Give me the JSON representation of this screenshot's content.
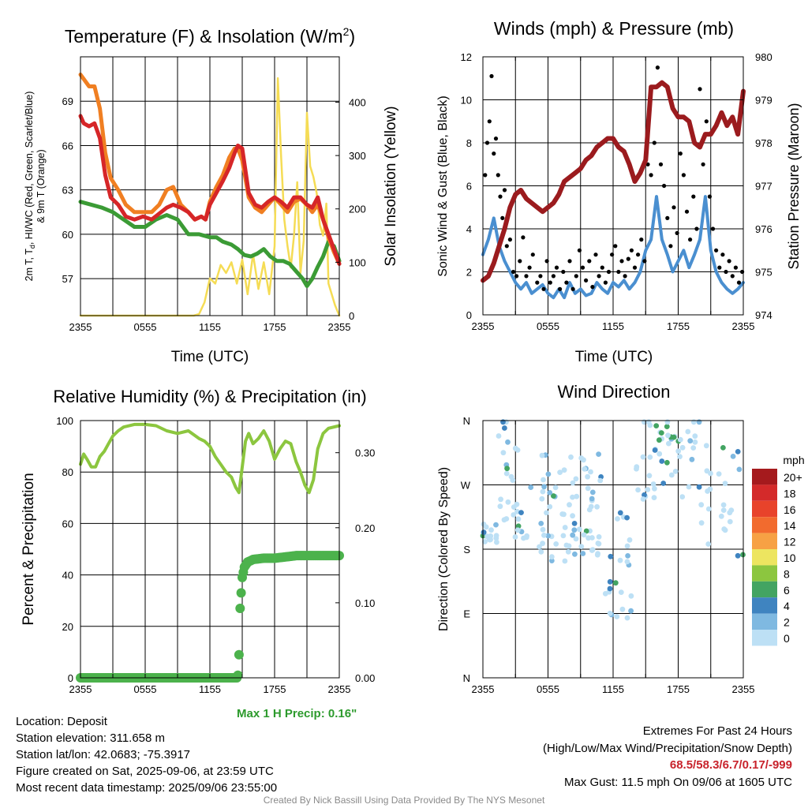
{
  "chart_data": [
    {
      "type": "line",
      "title": "Temperature (F) & Insolation (W/m2)",
      "title_main": "Temperature (F) & Insolation (W/m",
      "title_sup": "2",
      "title_end": ")",
      "ylabel_left": [
        "2m T, T",
        "d",
        ", HI/WC (Red, Green, Scarlet/Blue)",
        "& 9m T (Orange)"
      ],
      "ylabel_right": "Solar Insolation (Yellow)",
      "xlabel": "Time (UTC)",
      "x_ticks": [
        "2355",
        "0555",
        "1155",
        "1755",
        "2355"
      ],
      "y_left_ticks": [
        57,
        60,
        63,
        66,
        69
      ],
      "y_left_range": [
        54.5,
        72
      ],
      "y_right_ticks": [
        0,
        100,
        200,
        300,
        400
      ],
      "y_right_range": [
        0,
        485
      ],
      "x_range_hours": [
        0,
        24
      ],
      "grid": true,
      "series": [
        {
          "name": "Red",
          "axis": "left",
          "color": "#d62628",
          "x": [
            0,
            0.3,
            0.8,
            1.3,
            1.8,
            2.3,
            2.8,
            3.5,
            4.2,
            5,
            5.8,
            6.6,
            7.3,
            8,
            8.6,
            9.3,
            10,
            10.6,
            11.2,
            11.6,
            12,
            12.6,
            13.2,
            13.8,
            14.3,
            14.6,
            15,
            15.6,
            16.2,
            16.8,
            17.4,
            18,
            18.6,
            19.2,
            19.8,
            20.4,
            21,
            21.5,
            22,
            22.5,
            23,
            23.5,
            24
          ],
          "y": [
            68,
            67.5,
            67.3,
            67.5,
            66.5,
            64,
            62.5,
            62,
            61.2,
            61,
            61.2,
            61,
            61.4,
            61.8,
            62,
            61.8,
            61.5,
            61,
            61.2,
            61,
            62,
            62.8,
            63.6,
            64.5,
            65.5,
            66,
            65.8,
            62.8,
            62,
            61.8,
            62.2,
            62.5,
            62.2,
            61.8,
            62.5,
            62.5,
            62,
            61.8,
            62.5,
            61,
            60,
            59,
            58
          ]
        },
        {
          "name": "Orange",
          "axis": "left",
          "color": "#f07f22",
          "x": [
            0,
            0.3,
            0.8,
            1.3,
            1.8,
            2.3,
            2.8,
            3.5,
            4.2,
            5,
            5.8,
            6.6,
            7.3,
            8,
            8.6,
            9.3,
            10,
            10.6,
            11.2,
            11.6,
            12,
            12.6,
            13.2,
            13.8,
            14.3,
            14.6,
            15,
            15.6,
            16.2,
            16.8,
            17.4,
            18,
            18.6,
            19.2,
            19.8,
            20.4,
            21,
            21.5,
            22,
            22.5,
            23,
            23.5,
            24
          ],
          "y": [
            70.8,
            70.5,
            70,
            70,
            68.5,
            65.5,
            63.8,
            63,
            62,
            61.5,
            61.5,
            61.5,
            62,
            63,
            63.2,
            62,
            61.5,
            61,
            61.2,
            61,
            62.2,
            63.2,
            64,
            65.2,
            65.8,
            65.8,
            65,
            62.5,
            61.8,
            61.5,
            62,
            62.5,
            62,
            61.5,
            62.2,
            62.4,
            62,
            61.5,
            62,
            61,
            59.8,
            58.8,
            58
          ]
        },
        {
          "name": "Green",
          "axis": "left",
          "color": "#3b9b35",
          "x": [
            0,
            1,
            2,
            3,
            4,
            5,
            6,
            7,
            8,
            9,
            10,
            11,
            12,
            12.6,
            13.2,
            14,
            14.6,
            15.2,
            15.8,
            16.4,
            17,
            17.6,
            18.2,
            18.8,
            19.4,
            20,
            20.6,
            21,
            21.5,
            22,
            22.5,
            23,
            23.5,
            24
          ],
          "y": [
            62.2,
            62,
            61.8,
            61.5,
            61,
            60.5,
            60.5,
            61,
            61.3,
            61,
            60,
            60,
            59.8,
            59.8,
            59.5,
            59.3,
            59,
            58.6,
            58.5,
            58.7,
            59,
            58.5,
            58.2,
            58.2,
            58,
            57.5,
            57,
            56.5,
            57,
            57.8,
            58.5,
            59.5,
            59.2,
            58.2
          ]
        },
        {
          "name": "Yellow",
          "axis": "right",
          "color": "#f5dc55",
          "x": [
            0,
            1,
            2,
            3,
            4,
            5,
            6,
            7,
            8,
            9,
            10,
            10.5,
            11,
            11.5,
            12,
            12.5,
            13,
            13.5,
            14,
            14.5,
            15,
            15.5,
            16,
            16.5,
            17,
            17.5,
            18,
            18.3,
            18.6,
            18.9,
            19.2,
            19.5,
            19.8,
            20.1,
            20.4,
            20.7,
            21,
            21.3,
            21.6,
            21.9,
            22.2,
            22.5,
            22.8,
            23,
            23.3,
            23.6,
            24
          ],
          "y": [
            0,
            0,
            0,
            0,
            0,
            0,
            0,
            0,
            0,
            0,
            0,
            0,
            3,
            25,
            70,
            60,
            95,
            80,
            100,
            60,
            105,
            40,
            115,
            50,
            100,
            40,
            130,
            445,
            300,
            180,
            130,
            90,
            150,
            250,
            80,
            140,
            380,
            280,
            260,
            230,
            170,
            150,
            210,
            60,
            40,
            20,
            0
          ]
        }
      ]
    },
    {
      "type": "line",
      "title": "Winds (mph) & Pressure (mb)",
      "ylabel_left": "Sonic Wind & Gust (Blue, Black)",
      "ylabel_right": "Station Pressure (Maroon)",
      "xlabel": "Time (UTC)",
      "x_ticks": [
        "2355",
        "0555",
        "1155",
        "1755",
        "2355"
      ],
      "y_left_ticks": [
        0,
        2,
        4,
        6,
        8,
        10,
        12
      ],
      "y_left_range": [
        0,
        12
      ],
      "y_right_ticks": [
        974,
        975,
        976,
        977,
        978,
        979,
        980
      ],
      "y_right_range": [
        974,
        980
      ],
      "grid": true,
      "series": [
        {
          "name": "Blue",
          "axis": "left",
          "color": "#4a8fd0",
          "x": [
            0,
            0.5,
            1,
            1.5,
            2,
            2.5,
            3,
            3.5,
            4,
            4.5,
            5,
            5.5,
            6,
            6.5,
            7,
            7.5,
            8,
            8.5,
            9,
            9.5,
            10,
            10.5,
            11,
            11.5,
            12,
            12.5,
            13,
            13.5,
            14,
            14.5,
            15,
            15.5,
            16,
            16.5,
            17,
            17.5,
            18,
            18.5,
            19,
            19.5,
            20,
            20.5,
            21,
            21.5,
            22,
            22.5,
            23,
            23.5,
            24
          ],
          "y": [
            2.8,
            3.5,
            4.5,
            3.2,
            2.5,
            2,
            1.5,
            1.2,
            1.5,
            1,
            1.2,
            1.4,
            1,
            0.8,
            1.2,
            0.8,
            1.5,
            1,
            1.2,
            0.9,
            1,
            1.5,
            1.2,
            1,
            1.5,
            1.3,
            1.6,
            1.2,
            1.5,
            2,
            3,
            3.5,
            5.5,
            3.5,
            2.8,
            2,
            2.5,
            3,
            2.2,
            2.8,
            3.5,
            5.5,
            3,
            2,
            1.5,
            1.2,
            1,
            1.2,
            1.5
          ]
        },
        {
          "name": "Maroon",
          "axis": "right",
          "color": "#9b1b1e",
          "x": [
            0,
            0.5,
            1,
            1.5,
            2,
            2.5,
            3,
            3.5,
            4,
            4.5,
            5,
            5.5,
            6,
            6.5,
            7,
            7.5,
            8,
            8.5,
            9,
            9.5,
            10,
            10.5,
            11,
            11.5,
            12,
            12.5,
            13,
            13.5,
            14,
            14.5,
            15,
            15.5,
            16,
            16.5,
            17,
            17.5,
            18,
            18.5,
            19,
            19.5,
            20,
            20.5,
            21,
            21.5,
            22,
            22.5,
            23,
            23.5,
            24
          ],
          "y": [
            974.8,
            974.9,
            975.2,
            975.6,
            976,
            976.5,
            976.8,
            976.9,
            976.7,
            976.6,
            976.5,
            976.4,
            976.5,
            976.6,
            976.8,
            977.1,
            977.2,
            977.3,
            977.4,
            977.6,
            977.7,
            977.9,
            978,
            978.1,
            978.1,
            977.9,
            977.8,
            977.5,
            977.1,
            977.3,
            977.6,
            979.3,
            979.3,
            979.4,
            979.3,
            978.8,
            978.6,
            978.6,
            978.5,
            978,
            977.9,
            978.2,
            978.2,
            978.4,
            978.7,
            978.4,
            978.6,
            978.2,
            979.2
          ]
        },
        {
          "name": "Black",
          "axis": "left",
          "type": "scatter",
          "color": "#000000",
          "x": [
            0.2,
            0.4,
            0.6,
            0.8,
            1,
            1.2,
            1.4,
            1.6,
            1.8,
            2,
            2.2,
            2.5,
            2.8,
            3.1,
            3.4,
            3.7,
            4,
            4.3,
            4.6,
            5,
            5.3,
            5.6,
            5.9,
            6.2,
            6.5,
            6.8,
            7.1,
            7.4,
            7.7,
            8,
            8.3,
            8.6,
            8.9,
            9.2,
            9.5,
            9.8,
            10.1,
            10.4,
            10.7,
            11,
            11.3,
            11.6,
            11.9,
            12.2,
            12.5,
            12.8,
            13.1,
            13.4,
            13.7,
            14,
            14.3,
            14.6,
            14.9,
            15.2,
            15.5,
            15.8,
            16.1,
            16.4,
            16.7,
            17,
            17.3,
            17.6,
            17.9,
            18.2,
            18.5,
            18.8,
            19.1,
            19.4,
            19.7,
            20,
            20.3,
            20.6,
            20.9,
            21.2,
            21.5,
            21.8,
            22.1,
            22.4,
            22.7,
            23,
            23.3,
            23.6,
            23.9
          ],
          "y": [
            6.5,
            8,
            9,
            11.1,
            7.5,
            8.2,
            6.5,
            5.5,
            4.5,
            5.8,
            3.2,
            3.5,
            2,
            1.8,
            2.5,
            3.6,
            1.8,
            2.2,
            2.8,
            1.5,
            1.8,
            1.2,
            2.5,
            1.5,
            1.8,
            2.2,
            1.2,
            2,
            1.5,
            2.5,
            1.2,
            1.8,
            3,
            2.2,
            1.6,
            2.5,
            1.3,
            2.8,
            1.8,
            2.2,
            1.5,
            2,
            2.8,
            3.2,
            2,
            2.5,
            1.8,
            2.6,
            3,
            2.2,
            2.8,
            3.5,
            2.5,
            7,
            6.5,
            8,
            11.5,
            7,
            6,
            4.5,
            3.2,
            5,
            3.8,
            7.5,
            6.5,
            4.8,
            3.5,
            5.5,
            4,
            10.5,
            7,
            9,
            5.5,
            4,
            3,
            2.2,
            2.8,
            2,
            2.5,
            1.8,
            2.2,
            1.5,
            2
          ]
        }
      ]
    },
    {
      "type": "line",
      "title": "Relative Humidity (%) & Precipitation (in)",
      "ylabel_left": "Percent & Precipitation",
      "y_left_ticks": [
        0,
        20,
        40,
        60,
        80,
        100
      ],
      "y_left_range": [
        0,
        100
      ],
      "y_right_ticks": [
        "0.00",
        "0.10",
        "0.20",
        "0.30"
      ],
      "y_right_range": [
        0,
        0.3428
      ],
      "x_ticks": [
        "2355",
        "0555",
        "1155",
        "1755",
        "2355"
      ],
      "grid": true,
      "series": [
        {
          "name": "Light green",
          "axis": "left",
          "color": "#8cc63f",
          "x": [
            0,
            0.3,
            0.6,
            1,
            1.4,
            1.8,
            2.2,
            2.6,
            3,
            3.5,
            4,
            5,
            6,
            7,
            8,
            9,
            10,
            11,
            11.5,
            12,
            12.5,
            13,
            13.5,
            14,
            14.4,
            14.7,
            15,
            15.3,
            15.6,
            16,
            16.5,
            17,
            17.5,
            18,
            18.5,
            19,
            19.5,
            20,
            20.4,
            20.8,
            21.2,
            21.6,
            22,
            22.5,
            23,
            24
          ],
          "y": [
            83,
            87,
            85,
            82,
            82,
            86,
            88,
            91,
            94,
            96,
            97.5,
            98.5,
            98.5,
            98,
            96,
            95,
            96,
            93,
            92,
            90,
            86,
            83,
            80,
            78,
            74,
            72,
            82,
            92,
            95,
            91,
            93,
            96,
            92,
            85,
            89,
            92,
            91,
            84,
            80,
            75,
            72,
            77,
            89,
            95,
            97,
            98
          ]
        },
        {
          "name": "Precip",
          "axis": "left",
          "type": "step",
          "color": "#4cb24c",
          "x": [
            0,
            14.5,
            14.6,
            14.7,
            14.8,
            14.9,
            15,
            15.2,
            15.5,
            16,
            17,
            18,
            19,
            20,
            21,
            22,
            23,
            24
          ],
          "y": [
            0,
            0,
            1,
            9,
            27,
            33,
            39,
            43,
            45,
            46,
            46.5,
            46.5,
            47,
            47.5,
            47.5,
            47.5,
            47.5,
            47.5
          ]
        }
      ]
    },
    {
      "type": "scatter",
      "title": "Wind Direction",
      "ylabel_left": "Direction (Colored By Speed)",
      "y_ticks": [
        "N",
        "E",
        "S",
        "W",
        "N"
      ],
      "y_range_deg": [
        0,
        360
      ],
      "x_ticks": [
        "2355",
        "0555",
        "1155",
        "1755",
        "2355"
      ],
      "grid": true,
      "legend": {
        "title": "mph",
        "placement": "right",
        "labels": [
          "20+",
          "18",
          "16",
          "14",
          "12",
          "10",
          "8",
          "6",
          "4",
          "2",
          "0"
        ],
        "colors": [
          "#a51a1d",
          "#d42a2a",
          "#e8432b",
          "#f26b2e",
          "#f7a144",
          "#ede560",
          "#8cc63f",
          "#43a462",
          "#3f84c0",
          "#7fb9e1",
          "#bde0f5"
        ]
      }
    }
  ],
  "footer": {
    "location": "Location: Deposit",
    "elevation": "Station elevation: 311.658 m",
    "latlon": "Station lat/lon: 42.0683; -75.3917",
    "created": "Figure created on Sat, 2025-09-06, at 23:59 UTC",
    "recent": "Most recent data timestamp: 2025/09/06 23:55:00",
    "max_precip": "Max 1 H Precip: 0.16\"",
    "extremes_title": "Extremes For Past 24 Hours",
    "extremes_subtitle": "(High/Low/Max Wind/Precipitation/Snow Depth)",
    "extremes_values": "68.5/58.3/6.7/0.17/-999",
    "max_gust": "Max Gust: 11.5 mph On 09/06 at 1605 UTC",
    "credit": "Created By Nick Bassill Using Data Provided By The NYS Mesonet"
  }
}
